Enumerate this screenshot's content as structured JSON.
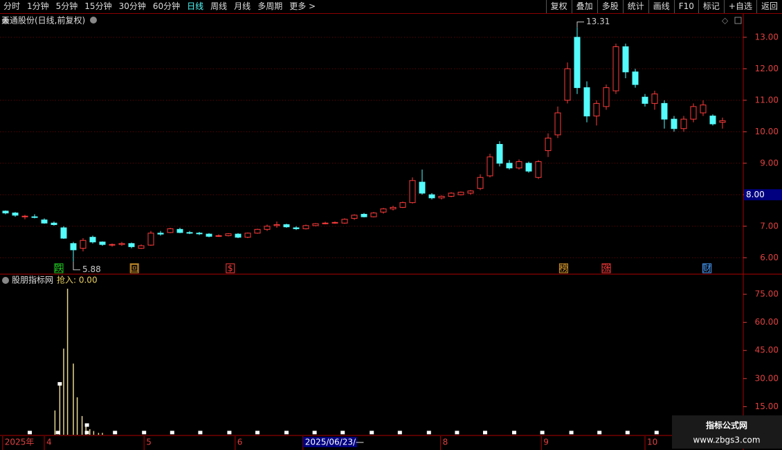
{
  "toolbar": {
    "left": [
      "分时",
      "1分钟",
      "5分钟",
      "15分钟",
      "30分钟",
      "60分钟",
      "日线",
      "周线",
      "月线",
      "多周期",
      "更多 >"
    ],
    "active": "日线",
    "right": [
      "复权",
      "叠加",
      "多股",
      "统计",
      "画线",
      "F10",
      "标记",
      "+自选",
      "返回"
    ]
  },
  "chart_data": [
    {
      "type": "candlestick",
      "title": "天通股份(日线,前复权)",
      "up_color": "#ff3c3c",
      "down_color": "#54fcfc",
      "xlim": [
        -0.5,
        74.5
      ],
      "ylim": [
        5.5,
        13.7
      ],
      "yticks": [
        {
          "value": 6,
          "label": "6.00"
        },
        {
          "value": 7,
          "label": "7.00"
        },
        {
          "value": 8,
          "label": "8.00"
        },
        {
          "value": 9,
          "label": "9.00"
        },
        {
          "value": 10,
          "label": "10.00"
        },
        {
          "value": 11,
          "label": "11.00"
        },
        {
          "value": 12,
          "label": "12.00"
        },
        {
          "value": 13,
          "label": "13.00"
        }
      ],
      "grid": true,
      "ohlc": [
        [
          7.48,
          7.5,
          7.38,
          7.42
        ],
        [
          7.42,
          7.45,
          7.3,
          7.35
        ],
        [
          7.3,
          7.36,
          7.22,
          7.32
        ],
        [
          7.3,
          7.38,
          7.25,
          7.28
        ],
        [
          7.2,
          7.25,
          7.08,
          7.1
        ],
        [
          7.1,
          7.15,
          7.02,
          7.05
        ],
        [
          6.95,
          7.0,
          6.6,
          6.62
        ],
        [
          6.45,
          6.5,
          5.88,
          6.25
        ],
        [
          6.3,
          6.62,
          6.2,
          6.55
        ],
        [
          6.65,
          6.7,
          6.45,
          6.5
        ],
        [
          6.5,
          6.52,
          6.38,
          6.42
        ],
        [
          6.4,
          6.45,
          6.35,
          6.42
        ],
        [
          6.42,
          6.5,
          6.38,
          6.45
        ],
        [
          6.45,
          6.48,
          6.3,
          6.35
        ],
        [
          6.3,
          6.42,
          6.28,
          6.38
        ],
        [
          6.4,
          6.85,
          6.38,
          6.78
        ],
        [
          6.78,
          6.85,
          6.7,
          6.75
        ],
        [
          6.8,
          6.95,
          6.78,
          6.92
        ],
        [
          6.9,
          6.95,
          6.78,
          6.8
        ],
        [
          6.8,
          6.85,
          6.75,
          6.78
        ],
        [
          6.78,
          6.82,
          6.72,
          6.76
        ],
        [
          6.75,
          6.78,
          6.65,
          6.68
        ],
        [
          6.7,
          6.74,
          6.66,
          6.7
        ],
        [
          6.7,
          6.78,
          6.68,
          6.76
        ],
        [
          6.75,
          6.78,
          6.62,
          6.65
        ],
        [
          6.65,
          6.8,
          6.62,
          6.78
        ],
        [
          6.78,
          6.92,
          6.76,
          6.9
        ],
        [
          6.9,
          7.05,
          6.85,
          7.0
        ],
        [
          7.02,
          7.15,
          6.95,
          7.05
        ],
        [
          7.05,
          7.08,
          6.95,
          6.98
        ],
        [
          6.95,
          7.0,
          6.88,
          6.92
        ],
        [
          6.92,
          7.05,
          6.9,
          7.02
        ],
        [
          7.02,
          7.1,
          7.0,
          7.08
        ],
        [
          7.1,
          7.14,
          7.06,
          7.1
        ],
        [
          7.1,
          7.15,
          7.08,
          7.12
        ],
        [
          7.1,
          7.25,
          7.08,
          7.22
        ],
        [
          7.25,
          7.38,
          7.2,
          7.35
        ],
        [
          7.38,
          7.42,
          7.28,
          7.3
        ],
        [
          7.3,
          7.45,
          7.28,
          7.42
        ],
        [
          7.45,
          7.58,
          7.4,
          7.55
        ],
        [
          7.55,
          7.65,
          7.5,
          7.6
        ],
        [
          7.6,
          7.78,
          7.58,
          7.75
        ],
        [
          7.75,
          8.55,
          7.72,
          8.45
        ],
        [
          8.4,
          8.8,
          8.0,
          8.05
        ],
        [
          8.0,
          8.05,
          7.85,
          7.9
        ],
        [
          7.9,
          7.98,
          7.85,
          7.95
        ],
        [
          7.95,
          8.08,
          7.92,
          8.05
        ],
        [
          8.0,
          8.1,
          7.98,
          8.08
        ],
        [
          8.05,
          8.15,
          8.0,
          8.12
        ],
        [
          8.2,
          8.65,
          8.15,
          8.55
        ],
        [
          8.6,
          9.3,
          8.55,
          9.2
        ],
        [
          9.6,
          9.7,
          8.9,
          9.0
        ],
        [
          9.0,
          9.1,
          8.8,
          8.85
        ],
        [
          8.85,
          9.12,
          8.8,
          9.05
        ],
        [
          9.0,
          9.05,
          8.7,
          8.75
        ],
        [
          8.55,
          9.1,
          8.5,
          9.05
        ],
        [
          9.4,
          9.95,
          9.2,
          9.8
        ],
        [
          9.9,
          10.8,
          9.8,
          10.6
        ],
        [
          11.0,
          12.2,
          10.9,
          12.0
        ],
        [
          13.0,
          13.31,
          11.2,
          11.4
        ],
        [
          11.4,
          11.6,
          10.3,
          10.5
        ],
        [
          10.5,
          11.0,
          10.2,
          10.9
        ],
        [
          10.8,
          11.5,
          10.7,
          11.4
        ],
        [
          11.3,
          12.8,
          11.2,
          12.7
        ],
        [
          12.7,
          12.8,
          11.7,
          11.9
        ],
        [
          11.9,
          12.0,
          11.4,
          11.5
        ],
        [
          11.1,
          11.2,
          10.8,
          10.9
        ],
        [
          10.9,
          11.3,
          10.7,
          11.2
        ],
        [
          10.9,
          11.0,
          10.1,
          10.4
        ],
        [
          10.4,
          10.5,
          10.0,
          10.1
        ],
        [
          10.1,
          10.5,
          10.0,
          10.4
        ],
        [
          10.4,
          10.9,
          10.3,
          10.8
        ],
        [
          10.6,
          11.0,
          10.5,
          10.85
        ],
        [
          10.5,
          10.55,
          10.2,
          10.25
        ],
        [
          10.3,
          10.45,
          10.1,
          10.35
        ]
      ],
      "annotations": [
        {
          "value": 5.88,
          "x": 7
        },
        {
          "value": 13.31,
          "x": 59
        }
      ],
      "events": [
        {
          "label": "跌",
          "x": 5.5,
          "color": "#22cc22"
        },
        {
          "label": "回",
          "x": 13.3,
          "color": "#e0a030"
        },
        {
          "label": "$",
          "x": 23.2,
          "color": "#ff3c3c"
        },
        {
          "label": "榜",
          "x": 57.6,
          "color": "#e0a030"
        },
        {
          "label": "涨",
          "x": 62,
          "color": "#ff3c3c"
        },
        {
          "label": "财",
          "x": 72.4,
          "color": "#4aa0ff"
        }
      ],
      "price_tag": {
        "value": 8,
        "label": "8.00"
      }
    },
    {
      "type": "bar",
      "title": "股朋指标网",
      "legend": "抢入: 0.00",
      "color": "#e8d890",
      "xlim": [
        -0.5,
        74.5
      ],
      "ylim": [
        0,
        85
      ],
      "yticks": [
        {
          "value": 15,
          "label": "15.00"
        },
        {
          "value": 30,
          "label": "30.00"
        },
        {
          "value": 45,
          "label": "45.00"
        },
        {
          "value": 60,
          "label": "60.00"
        },
        {
          "value": 75,
          "label": "75.00"
        }
      ],
      "x": [
        5.1,
        5.6,
        6.0,
        6.4,
        7.0,
        7.4,
        7.9,
        8.3,
        8.7,
        9.1,
        9.6,
        10.0
      ],
      "values": [
        13,
        27,
        46,
        78,
        38,
        20,
        10,
        5,
        3,
        2,
        1,
        1
      ],
      "markers": {
        "color": "#ffffff",
        "x": [
          2.5,
          5.4,
          5.6,
          8.4,
          8.4,
          11.3,
          14.3,
          17.2,
          20.1,
          23.1,
          26,
          29,
          31.9,
          34.8,
          37.8,
          40.7,
          43.7,
          46.6,
          49.5,
          52.5,
          55.4,
          58.4,
          61.3,
          64.2,
          67.2
        ],
        "values": [
          1,
          1,
          27,
          1,
          5,
          1,
          1,
          1,
          1,
          1,
          1,
          1,
          1,
          1,
          1,
          1,
          1,
          1,
          1,
          1,
          1,
          1,
          1,
          1,
          1
        ]
      }
    }
  ],
  "date_axis": [
    {
      "label": "2025年",
      "x": -0.3
    },
    {
      "label": "4",
      "x": 4
    },
    {
      "label": "5",
      "x": 14.3
    },
    {
      "label": "6",
      "x": 23.7
    },
    {
      "label": "2025/06/23/—",
      "x": 30.7,
      "highlight": true
    },
    {
      "label": "8",
      "x": 44.9
    },
    {
      "label": "9",
      "x": 55.3
    },
    {
      "label": "10",
      "x": 66
    }
  ],
  "watermark": {
    "title": "指标公式网",
    "url": "www.zbgs3.com"
  }
}
